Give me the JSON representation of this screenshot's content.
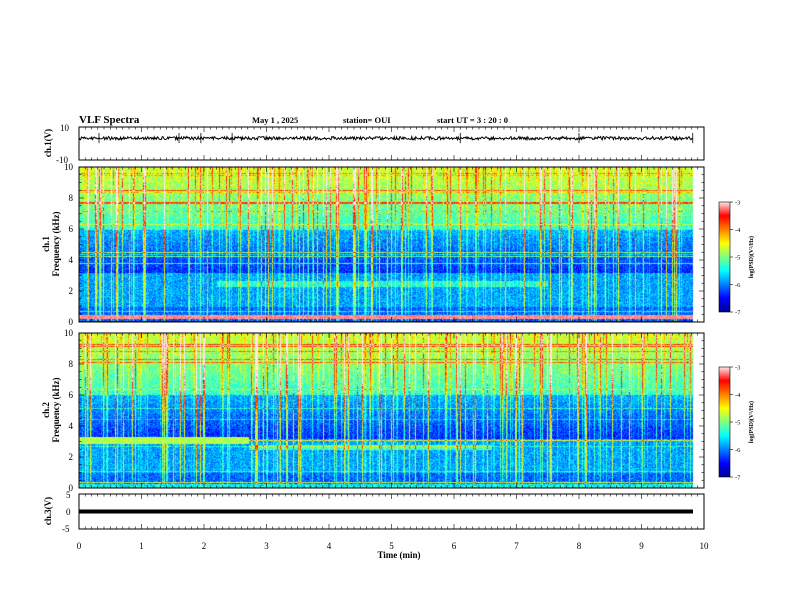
{
  "header": {
    "title": "VLF Spectra",
    "date": "May 1 , 2025",
    "station": "station= OUI",
    "start": "start  UT  =   3  : 20 : 0"
  },
  "chart_data": [
    {
      "type": "line",
      "panel": "ch1-waveform",
      "ylabel": "ch.1(V)",
      "ylim": [
        -10,
        10
      ],
      "yticks": [
        "10",
        "-10"
      ],
      "xlim": [
        0,
        10
      ],
      "baseline": 3.2,
      "amplitude": 1.0
    },
    {
      "type": "heatmap",
      "panel": "ch1-spectrogram",
      "ylabel": "Frequency (kHz)",
      "ylabel2": "ch.1",
      "ylim": [
        0,
        10
      ],
      "yticks": [
        "0",
        "2",
        "4",
        "6",
        "8",
        "10"
      ],
      "xlim": [
        0,
        10
      ],
      "data_end_min": 9.82,
      "colorbar": {
        "label": "log(PSD)(V²/Hz)",
        "range": [
          -7,
          -3
        ],
        "ticks": [
          "-3",
          "-4",
          "-5",
          "-6",
          "-7"
        ]
      }
    },
    {
      "type": "heatmap",
      "panel": "ch2-spectrogram",
      "ylabel": "Frequency (kHz)",
      "ylabel2": "ch.2",
      "ylim": [
        0,
        10
      ],
      "yticks": [
        "0",
        "2",
        "4",
        "6",
        "8",
        "10"
      ],
      "xlim": [
        0,
        10
      ],
      "data_end_min": 9.82,
      "band_change_min": 2.72,
      "colorbar": {
        "label": "log(PSD)(V²/Hz)",
        "range": [
          -7,
          -3
        ],
        "ticks": [
          "-3",
          "-4",
          "-5",
          "-6",
          "-7"
        ]
      }
    },
    {
      "type": "line",
      "panel": "ch3-waveform",
      "ylabel": "ch.3(V)",
      "ylim": [
        -5,
        5
      ],
      "yticks": [
        "5",
        "0",
        "-5"
      ],
      "xlim": [
        0,
        10
      ],
      "baseline": 0
    }
  ],
  "xaxis": {
    "label": "Time (min)",
    "ticks": [
      "0",
      "1",
      "2",
      "3",
      "4",
      "5",
      "6",
      "7",
      "8",
      "9",
      "10"
    ]
  },
  "colors": {
    "palette": [
      "#00008f",
      "#0000ff",
      "#0080ff",
      "#00ffff",
      "#80ff80",
      "#ffff00",
      "#ff8000",
      "#ff0000",
      "#ffe8e8"
    ]
  }
}
